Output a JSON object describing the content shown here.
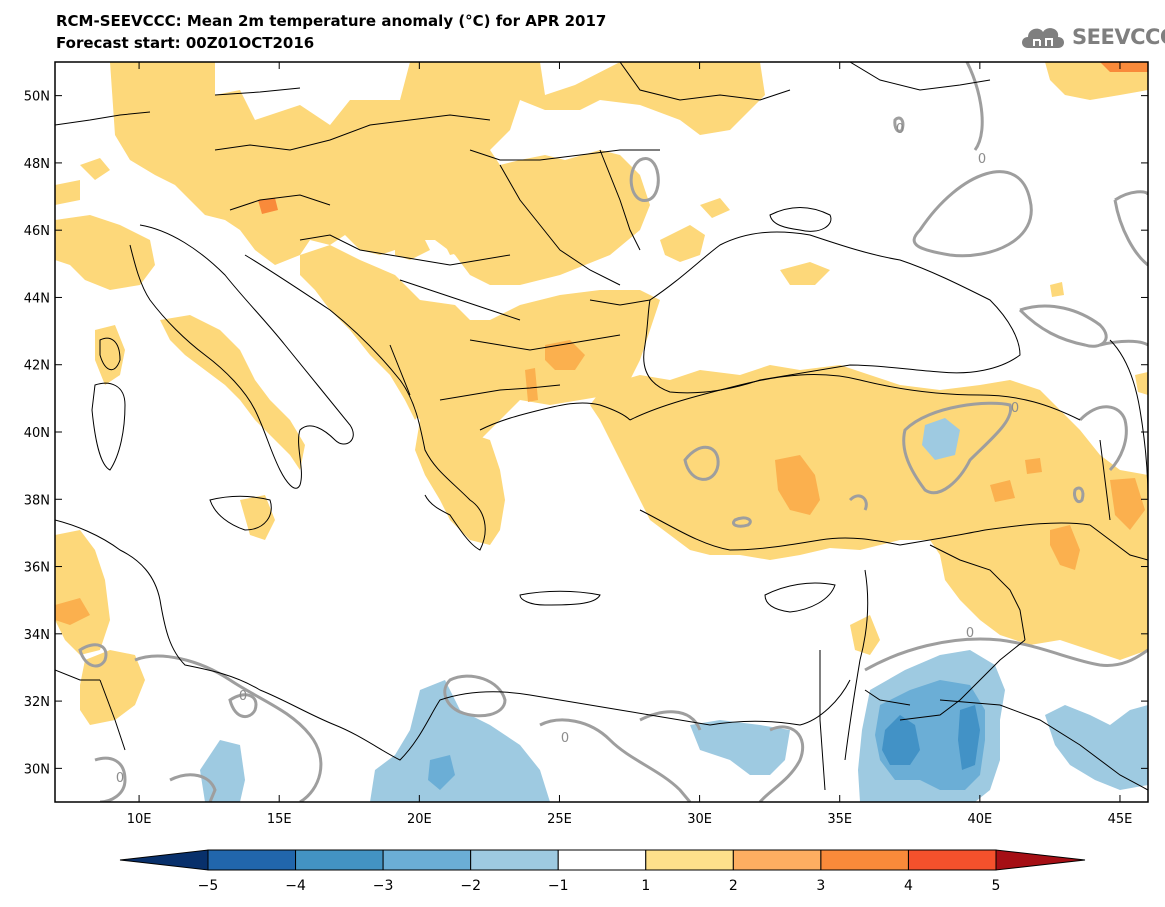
{
  "header": {
    "title": "RCM-SEEVCCC: Mean 2m temperature anomaly (°C) for APR 2017",
    "subtitle": "Forecast start: 00Z01OCT2016",
    "logo_text": "SEEVCCC"
  },
  "map": {
    "lon_range": [
      7,
      46
    ],
    "lat_range": [
      29,
      51
    ],
    "lon_ticks": [
      "10E",
      "15E",
      "20E",
      "25E",
      "30E",
      "35E",
      "40E",
      "45E"
    ],
    "lat_ticks": [
      "50N",
      "48N",
      "46N",
      "44N",
      "42N",
      "40N",
      "38N",
      "36N",
      "34N",
      "32N",
      "30N"
    ],
    "contour_labels": [
      "0",
      "0",
      "0",
      "0",
      "0",
      "0",
      "0"
    ],
    "colors": {
      "land_outline": "#000000",
      "zero_contour": "#9e9e9e",
      "warm_1_2": "#fdd87a",
      "warm_2_3": "#fbb04e",
      "warm_3_4": "#f98a3a",
      "cool_m2_m1": "#9ecae1",
      "cool_m3_m2": "#6baed6",
      "cool_m4_m3": "#4292c6"
    }
  },
  "colorbar": {
    "labels": [
      "−5",
      "−4",
      "−3",
      "−2",
      "−1",
      "1",
      "2",
      "3",
      "4",
      "5"
    ],
    "colors": [
      "#08306b",
      "#2166ac",
      "#4393c3",
      "#6baed6",
      "#9ecae1",
      "#ffffff",
      "#fee08b",
      "#fdae61",
      "#f98a3a",
      "#f4512c",
      "#d7191c",
      "#a50f15"
    ]
  }
}
